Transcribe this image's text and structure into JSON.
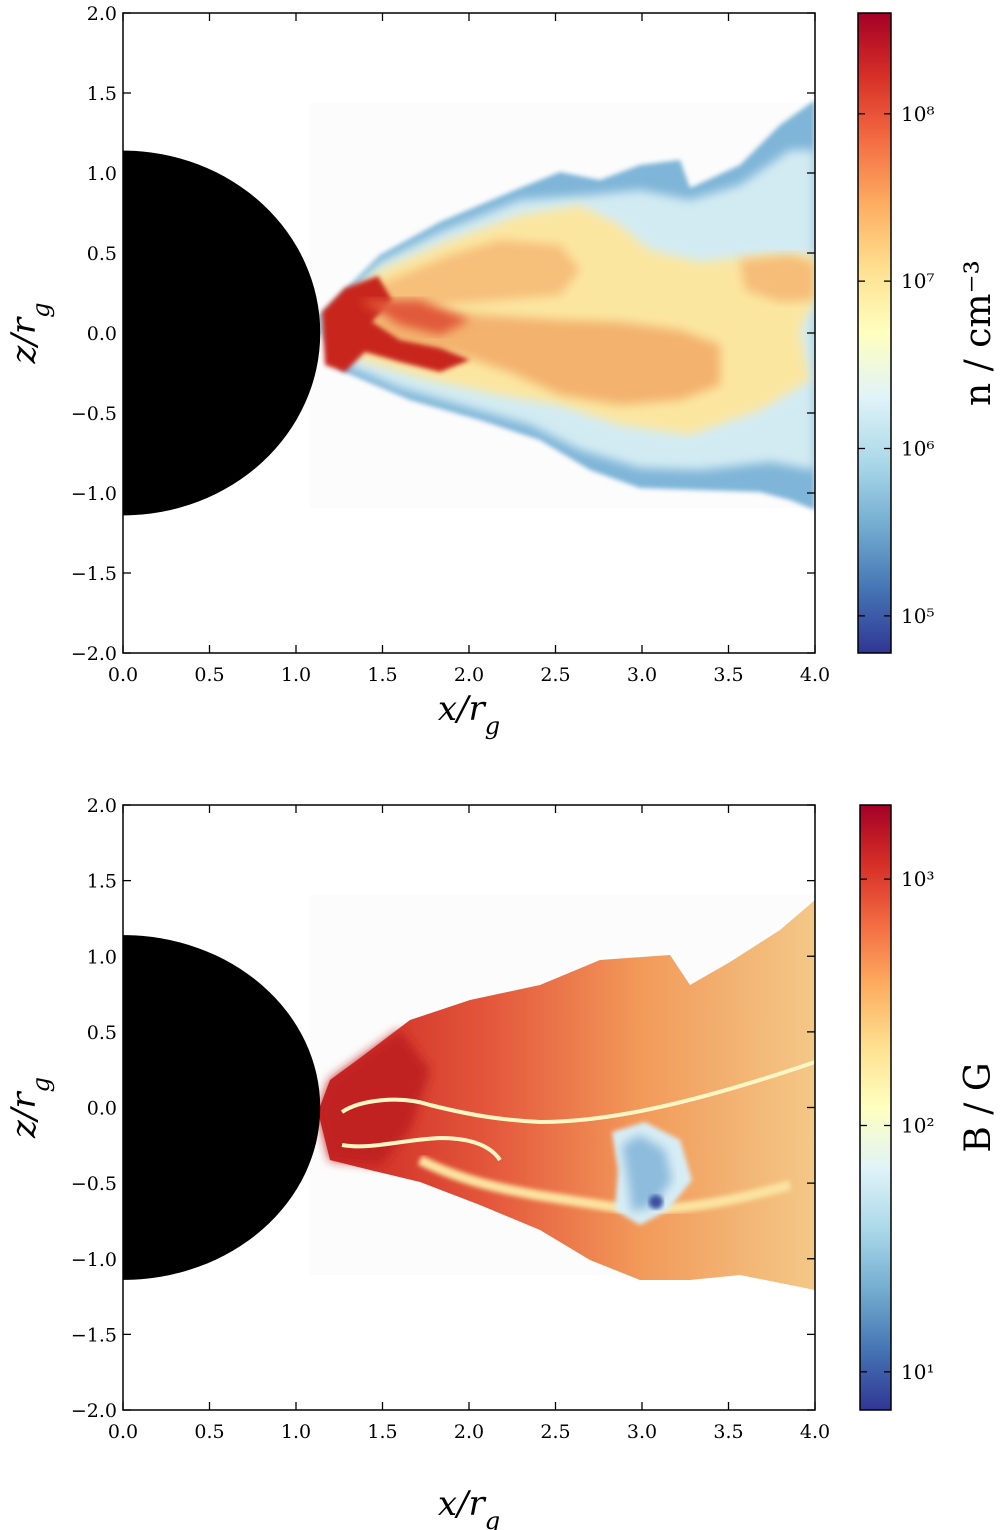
{
  "chart_data": [
    {
      "type": "heatmap",
      "title": "",
      "xlabel": "x/r_g",
      "ylabel": "z/r_g",
      "xlim": [
        0.0,
        4.0
      ],
      "ylim": [
        -2.0,
        2.0
      ],
      "x_ticks": [
        "0.0",
        "0.5",
        "1.0",
        "1.5",
        "2.0",
        "2.5",
        "3.0",
        "3.5",
        "4.0"
      ],
      "y_ticks": [
        "−2.0",
        "−1.5",
        "−1.0",
        "−0.5",
        "0.0",
        "0.5",
        "1.0",
        "1.5",
        "2.0"
      ],
      "horizon_radius": 1.14,
      "colorbar": {
        "label": "n / cm⁻³",
        "scale": "log",
        "range": [
          60000.0,
          400000000.0
        ],
        "ticks": [
          {
            "value": 100000.0,
            "label": "10⁵"
          },
          {
            "value": 1000000.0,
            "label": "10⁶"
          },
          {
            "value": 10000000.0,
            "label": "10⁷"
          },
          {
            "value": 100000000.0,
            "label": "10⁸"
          }
        ],
        "colormap": "RdYlBu_r"
      }
    },
    {
      "type": "heatmap",
      "title": "",
      "xlabel": "x/r_g",
      "ylabel": "z/r_g",
      "xlim": [
        0.0,
        4.0
      ],
      "ylim": [
        -2.0,
        2.0
      ],
      "x_ticks": [
        "0.0",
        "0.5",
        "1.0",
        "1.5",
        "2.0",
        "2.5",
        "3.0",
        "3.5",
        "4.0"
      ],
      "y_ticks": [
        "−2.0",
        "−1.5",
        "−1.0",
        "−0.5",
        "0.0",
        "0.5",
        "1.0",
        "1.5",
        "2.0"
      ],
      "horizon_radius": 1.14,
      "colorbar": {
        "label": "B / G",
        "scale": "log",
        "range": [
          7,
          2000
        ],
        "ticks": [
          {
            "value": 10,
            "label": "10¹"
          },
          {
            "value": 100,
            "label": "10²"
          },
          {
            "value": 1000,
            "label": "10³"
          }
        ],
        "colormap": "RdYlBu_r"
      }
    }
  ]
}
